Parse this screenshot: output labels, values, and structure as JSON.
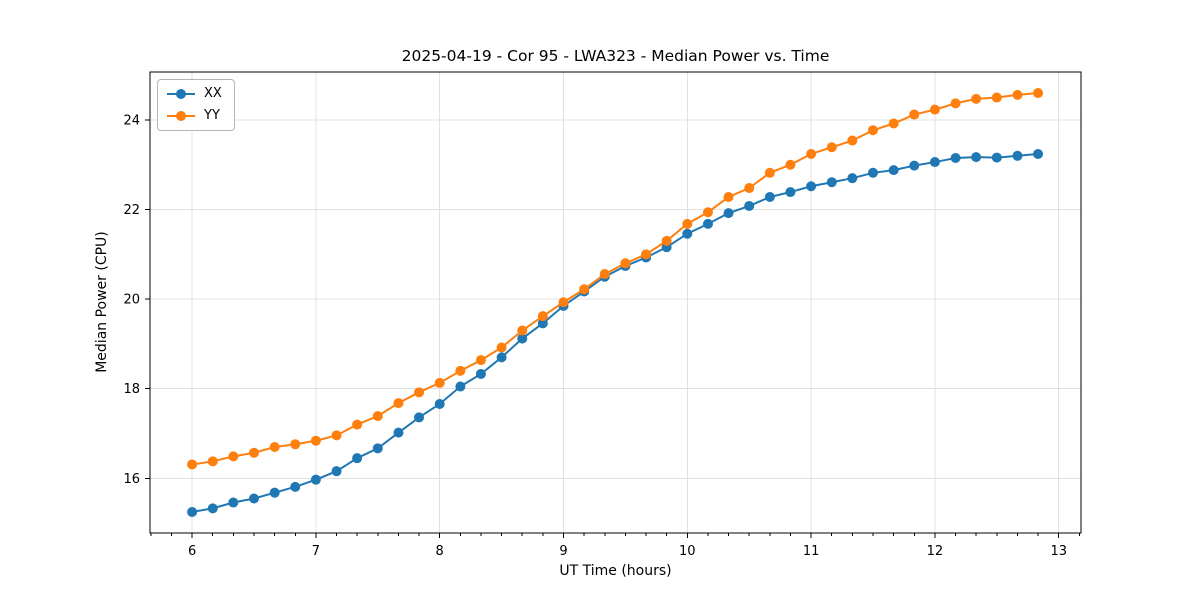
{
  "chart_data": {
    "type": "line",
    "title": "2025-04-19 - Cor 95 - LWA323 - Median Power vs. Time",
    "xlabel": "UT Time (hours)",
    "ylabel": "Median Power (CPU)",
    "xlim": [
      5.66,
      13.18
    ],
    "ylim": [
      14.78,
      25.07
    ],
    "x_ticks": [
      6,
      7,
      8,
      9,
      10,
      11,
      12,
      13
    ],
    "y_ticks": [
      16,
      18,
      20,
      22,
      24
    ],
    "x_minor_tick_step_hours": 0.1667,
    "grid": true,
    "legend_position": "upper left",
    "background_color": "#ffffff",
    "grid_color": "#e0e0e0",
    "spine_color": "#000000",
    "x": [
      6,
      6.167,
      6.333,
      6.5,
      6.667,
      6.833,
      7,
      7.167,
      7.333,
      7.5,
      7.667,
      7.833,
      8,
      8.167,
      8.333,
      8.5,
      8.667,
      8.833,
      9,
      9.167,
      9.333,
      9.5,
      9.667,
      9.833,
      10,
      10.167,
      10.333,
      10.5,
      10.667,
      10.833,
      11,
      11.167,
      11.333,
      11.5,
      11.667,
      11.833,
      12,
      12.167,
      12.333,
      12.5,
      12.667,
      12.833
    ],
    "series": [
      {
        "name": "XX",
        "color": "#1f77b4",
        "marker": "circle",
        "values": [
          15.25,
          15.33,
          15.46,
          15.55,
          15.68,
          15.81,
          15.97,
          16.16,
          16.45,
          16.67,
          17.02,
          17.36,
          17.66,
          18.05,
          18.33,
          18.7,
          19.12,
          19.46,
          19.85,
          20.17,
          20.5,
          20.74,
          20.93,
          21.16,
          21.46,
          21.68,
          21.92,
          22.08,
          22.28,
          22.39,
          22.52,
          22.61,
          22.7,
          22.82,
          22.88,
          22.98,
          23.06,
          23.15,
          23.17,
          23.16,
          23.2,
          23.24
        ]
      },
      {
        "name": "YY",
        "color": "#ff7f0e",
        "marker": "circle",
        "values": [
          16.31,
          16.38,
          16.49,
          16.57,
          16.7,
          16.76,
          16.84,
          16.96,
          17.2,
          17.39,
          17.68,
          17.92,
          18.13,
          18.4,
          18.64,
          18.92,
          19.3,
          19.62,
          19.93,
          20.22,
          20.56,
          20.8,
          21.0,
          21.3,
          21.68,
          21.94,
          22.28,
          22.48,
          22.82,
          23.0,
          23.24,
          23.39,
          23.54,
          23.77,
          23.92,
          24.12,
          24.23,
          24.37,
          24.47,
          24.5,
          24.56,
          24.6
        ]
      }
    ]
  }
}
